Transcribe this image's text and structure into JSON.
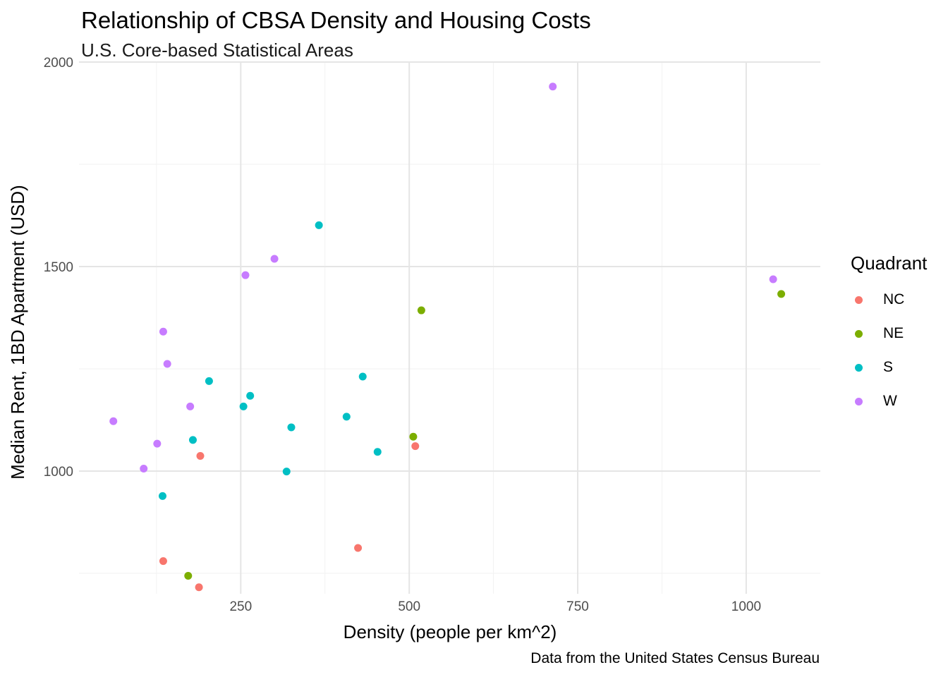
{
  "chart_data": {
    "type": "scatter",
    "title": "Relationship of CBSA Density and Housing Costs",
    "subtitle": "U.S. Core-based Statistical Areas",
    "caption": "Data from the United States Census Bureau",
    "xlabel": "Density (people per km^2)",
    "ylabel": "Median Rent, 1BD Apartment (USD)",
    "xlim": [
      10,
      1110
    ],
    "ylim": [
      700,
      2000
    ],
    "x_ticks": [
      250,
      500,
      750,
      1000
    ],
    "y_ticks": [
      1000,
      1500,
      2000
    ],
    "grid": true,
    "legend": {
      "title": "Quadrant",
      "position": "right"
    },
    "series": [
      {
        "name": "NC",
        "color": "#F8766D",
        "points": [
          [
            190,
            1037
          ],
          [
            509,
            1061
          ],
          [
            424,
            812
          ],
          [
            135,
            780
          ],
          [
            188,
            716
          ]
        ]
      },
      {
        "name": "NE",
        "color": "#7CAE00",
        "points": [
          [
            518,
            1393
          ],
          [
            506,
            1084
          ],
          [
            1052,
            1433
          ],
          [
            172,
            744
          ]
        ]
      },
      {
        "name": "S",
        "color": "#00BFC4",
        "points": [
          [
            366,
            1601
          ],
          [
            203,
            1220
          ],
          [
            264,
            1184
          ],
          [
            254,
            1158
          ],
          [
            179,
            1076
          ],
          [
            431,
            1231
          ],
          [
            407,
            1133
          ],
          [
            325,
            1107
          ],
          [
            453,
            1047
          ],
          [
            318,
            999
          ],
          [
            134,
            939
          ]
        ]
      },
      {
        "name": "W",
        "color": "#C77CFF",
        "points": [
          [
            713,
            1940
          ],
          [
            300,
            1519
          ],
          [
            257,
            1479
          ],
          [
            135,
            1341
          ],
          [
            141,
            1262
          ],
          [
            175,
            1158
          ],
          [
            61,
            1122
          ],
          [
            126,
            1067
          ],
          [
            106,
            1006
          ],
          [
            1040,
            1469
          ]
        ]
      }
    ]
  }
}
